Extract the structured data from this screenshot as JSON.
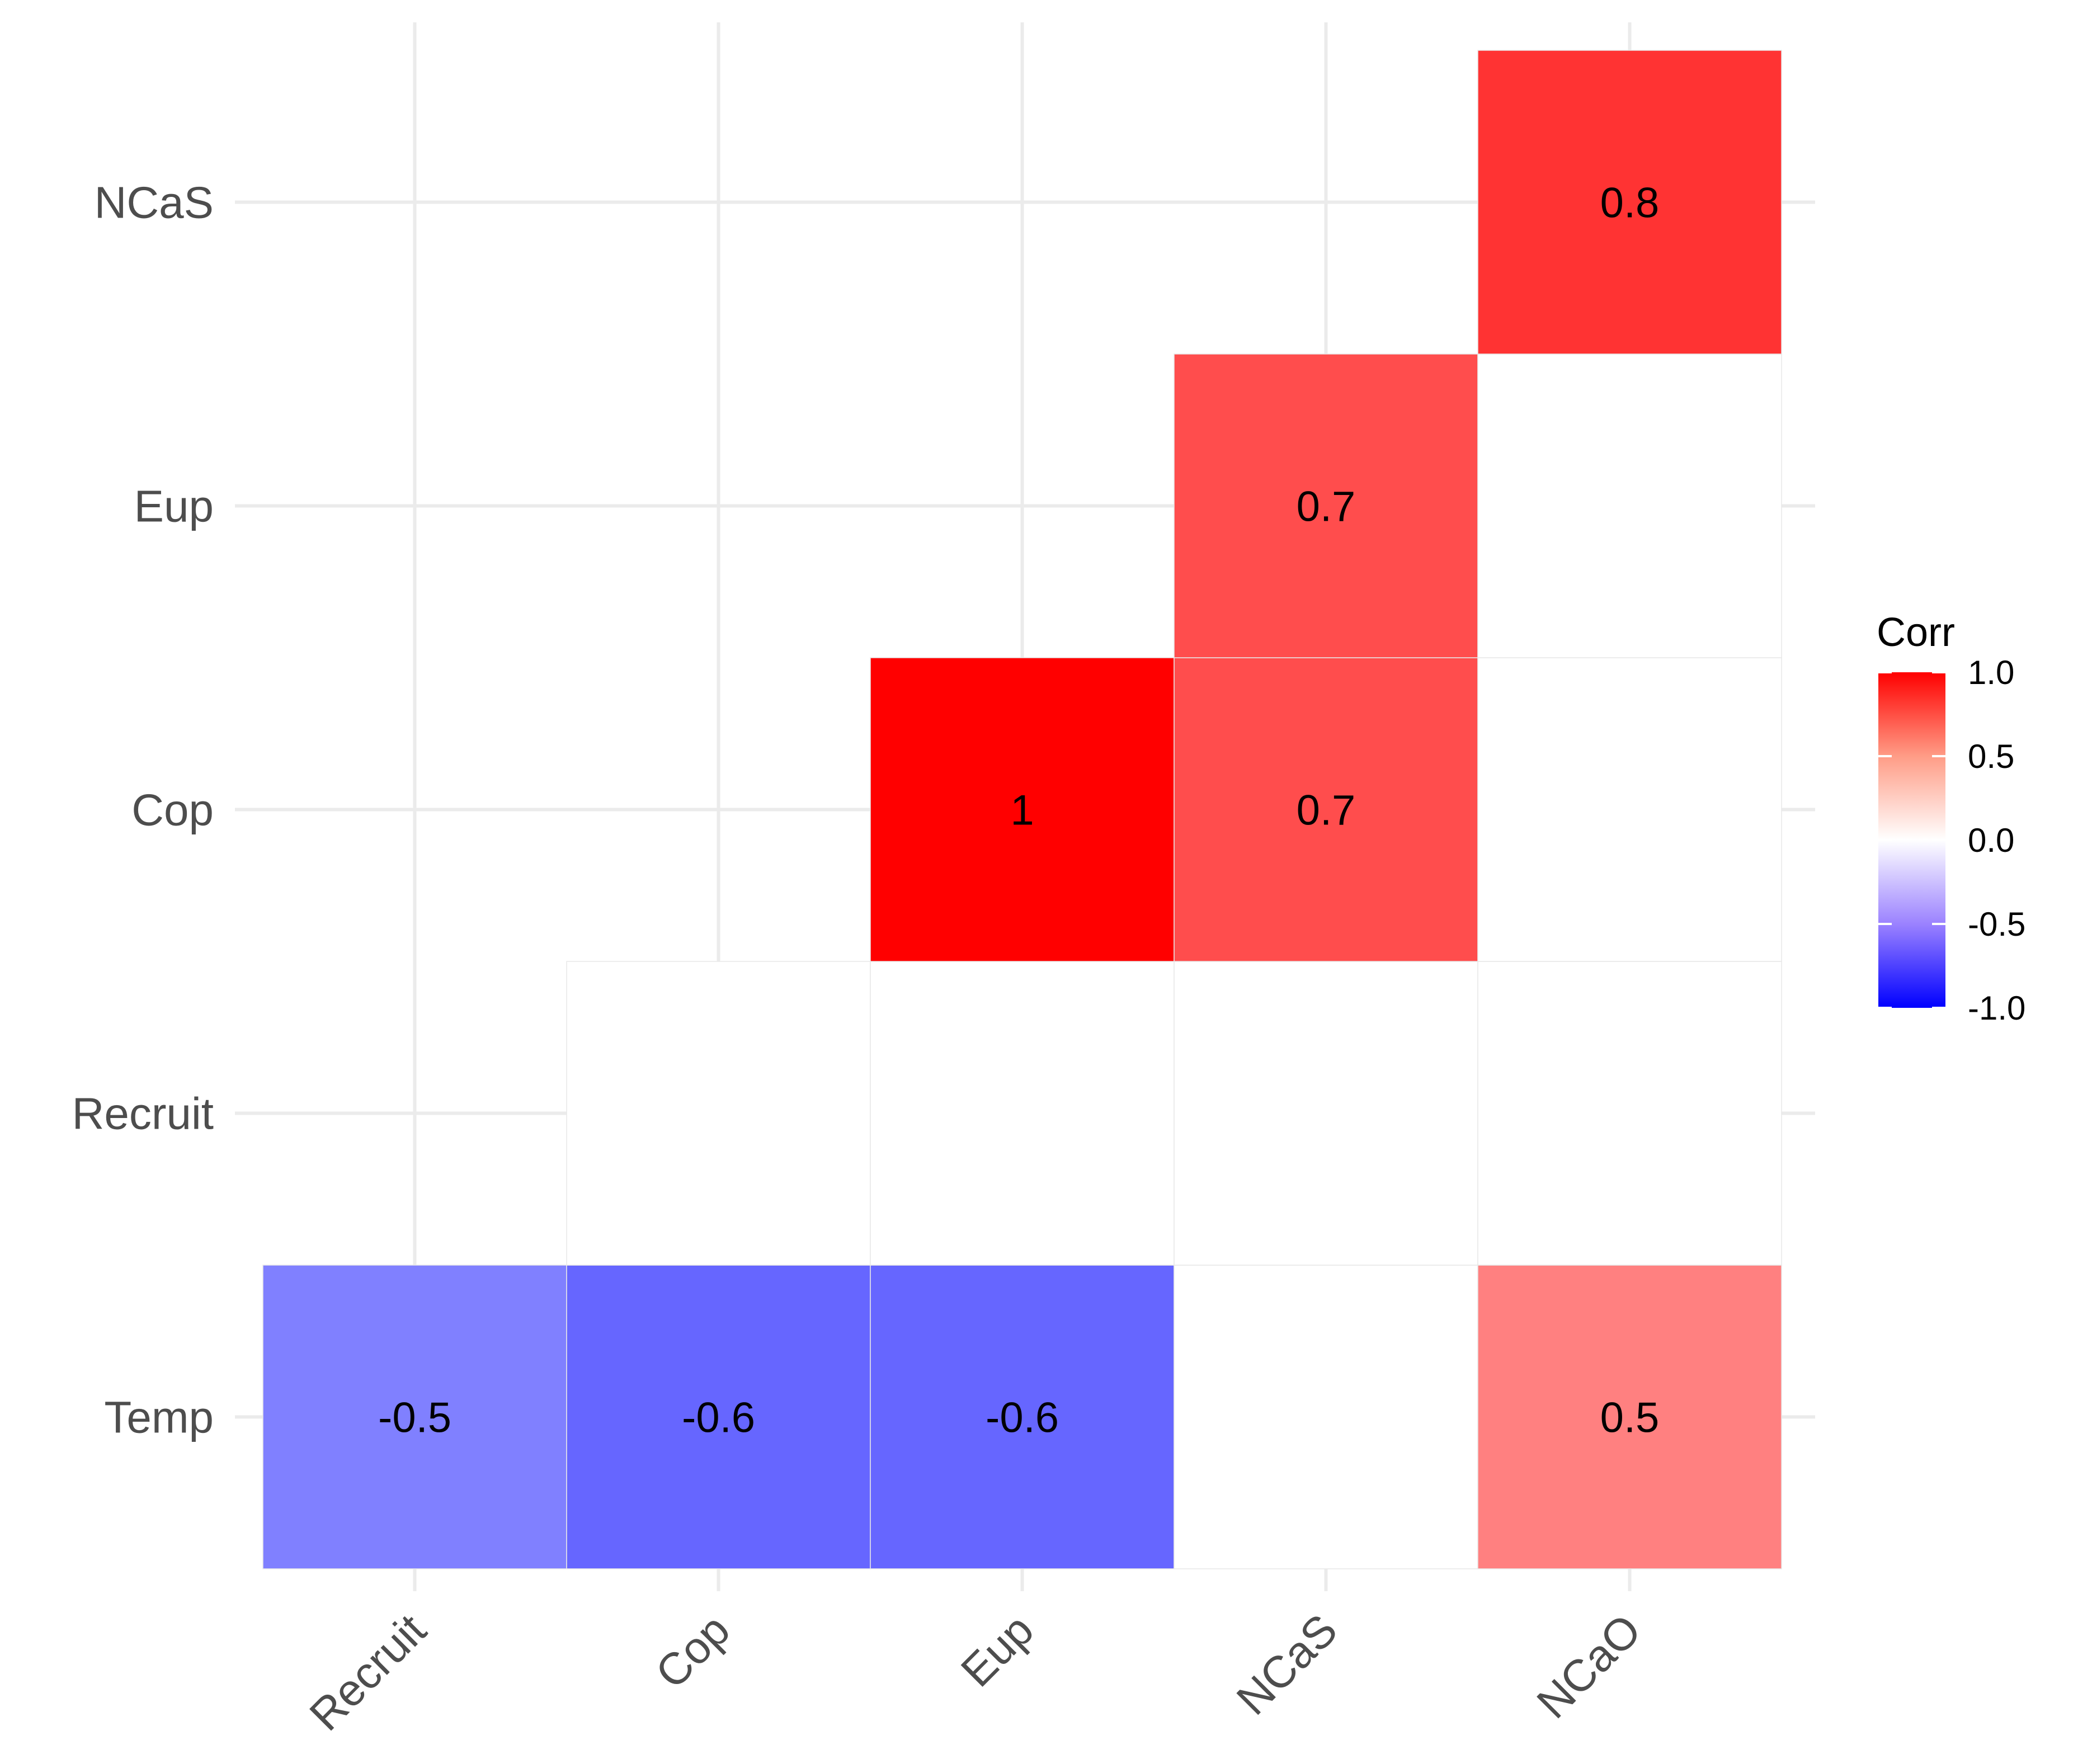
{
  "chart_data": {
    "type": "heatmap",
    "x_categories": [
      "Recruit",
      "Cop",
      "Eup",
      "NCaS",
      "NCaO"
    ],
    "y_categories": [
      "Temp",
      "Recruit",
      "Cop",
      "Eup",
      "NCaS"
    ],
    "cells": [
      {
        "x": "Recruit",
        "y": "Temp",
        "value": -0.5,
        "label": "-0.5"
      },
      {
        "x": "Cop",
        "y": "Temp",
        "value": -0.6,
        "label": "-0.6"
      },
      {
        "x": "Eup",
        "y": "Temp",
        "value": -0.6,
        "label": "-0.6"
      },
      {
        "x": "NCaS",
        "y": "Temp",
        "value": 0,
        "label": ""
      },
      {
        "x": "NCaO",
        "y": "Temp",
        "value": 0.5,
        "label": "0.5"
      },
      {
        "x": "Cop",
        "y": "Recruit",
        "value": 0,
        "label": ""
      },
      {
        "x": "Eup",
        "y": "Recruit",
        "value": 0,
        "label": ""
      },
      {
        "x": "NCaS",
        "y": "Recruit",
        "value": 0,
        "label": ""
      },
      {
        "x": "NCaO",
        "y": "Recruit",
        "value": 0,
        "label": ""
      },
      {
        "x": "Eup",
        "y": "Cop",
        "value": 1,
        "label": "1"
      },
      {
        "x": "NCaS",
        "y": "Cop",
        "value": 0.7,
        "label": "0.7"
      },
      {
        "x": "NCaO",
        "y": "Cop",
        "value": 0,
        "label": ""
      },
      {
        "x": "NCaS",
        "y": "Eup",
        "value": 0.7,
        "label": "0.7"
      },
      {
        "x": "NCaO",
        "y": "Eup",
        "value": 0,
        "label": ""
      },
      {
        "x": "NCaO",
        "y": "NCaS",
        "value": 0.8,
        "label": "0.8"
      }
    ],
    "legend": {
      "title": "Corr",
      "ticks": [
        "1.0",
        "0.5",
        "0.0",
        "-0.5",
        "-1.0"
      ],
      "tick_values": [
        1.0,
        0.5,
        0.0,
        -0.5,
        -1.0
      ],
      "placement": "right"
    },
    "color_scale": {
      "low": "#0000ff",
      "mid": "#ffffff",
      "high": "#ff0000",
      "range": [
        -1,
        1
      ]
    },
    "grid": true
  }
}
